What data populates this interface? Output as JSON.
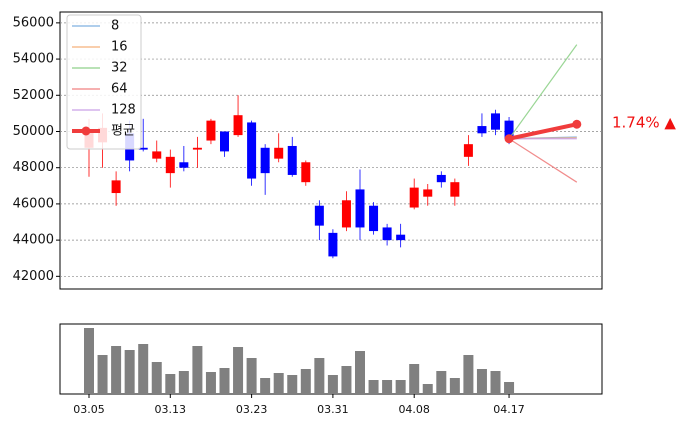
{
  "chart_data": [
    {
      "type": "candlestick",
      "ylim": [
        41300,
        56600
      ],
      "yticks": [
        42000,
        44000,
        46000,
        48000,
        50000,
        52000,
        54000,
        56000
      ],
      "grid": true,
      "up_color": "#ff0000",
      "down_color": "#0000ff",
      "open": [
        49100,
        49400,
        46600,
        49900,
        49100,
        48500,
        47700,
        48300,
        49000,
        49500,
        50000,
        49800,
        50500,
        49100,
        48500,
        49200,
        47200,
        45900,
        44400,
        44700,
        46800,
        45900,
        44700,
        44300,
        45800,
        46400,
        47600,
        46400,
        48600,
        50300,
        51000,
        50600,
        null,
        null,
        null,
        null,
        null
      ],
      "high": [
        50700,
        51000,
        47800,
        50600,
        50700,
        49500,
        49000,
        49200,
        49700,
        50700,
        50000,
        52000,
        50600,
        49300,
        49900,
        49700,
        48400,
        46200,
        44600,
        46700,
        47900,
        46100,
        44900,
        44900,
        47400,
        47100,
        47800,
        47400,
        49800,
        51000,
        51200,
        50800,
        null,
        null,
        null,
        null,
        null
      ],
      "low": [
        47500,
        48000,
        45900,
        47800,
        48900,
        48300,
        46900,
        47800,
        48000,
        49300,
        48600,
        49700,
        47000,
        46500,
        48300,
        47500,
        47000,
        44000,
        43000,
        44500,
        44000,
        44300,
        43700,
        43600,
        45700,
        45900,
        46900,
        45900,
        48100,
        49700,
        49800,
        49300,
        null,
        null,
        null,
        null,
        null
      ],
      "close": [
        50000,
        50200,
        47300,
        48400,
        49000,
        48900,
        48600,
        48000,
        49100,
        50600,
        48900,
        50900,
        47400,
        47700,
        49100,
        47600,
        48300,
        44800,
        43100,
        46200,
        44700,
        44500,
        44000,
        44000,
        46900,
        46800,
        47200,
        47200,
        49300,
        49900,
        50100,
        49600,
        null,
        null,
        null,
        null,
        null
      ],
      "series": [
        {
          "name": "8",
          "color": "#7fb0e0",
          "values": [
            null,
            null,
            null,
            null,
            null,
            null,
            null,
            null,
            null,
            null,
            null,
            null,
            null,
            null,
            null,
            null,
            null,
            null,
            null,
            null,
            null,
            null,
            null,
            null,
            null,
            null,
            null,
            null,
            null,
            null,
            null,
            49600,
            null,
            null,
            null,
            null,
            49700
          ]
        },
        {
          "name": "16",
          "color": "#f5b07a",
          "values": [
            null,
            null,
            null,
            null,
            null,
            null,
            null,
            null,
            null,
            null,
            null,
            null,
            null,
            null,
            null,
            null,
            null,
            null,
            null,
            null,
            null,
            null,
            null,
            null,
            null,
            null,
            null,
            null,
            null,
            null,
            null,
            49600,
            null,
            null,
            null,
            null,
            49650
          ]
        },
        {
          "name": "32",
          "color": "#8fd18a",
          "values": [
            null,
            null,
            null,
            null,
            null,
            null,
            null,
            null,
            null,
            null,
            null,
            null,
            null,
            null,
            null,
            null,
            null,
            null,
            null,
            null,
            null,
            null,
            null,
            null,
            null,
            null,
            null,
            null,
            null,
            null,
            null,
            49600,
            null,
            null,
            null,
            null,
            54800
          ]
        },
        {
          "name": "64",
          "color": "#f08080",
          "values": [
            null,
            null,
            null,
            null,
            null,
            null,
            null,
            null,
            null,
            null,
            null,
            null,
            null,
            null,
            null,
            null,
            null,
            null,
            null,
            null,
            null,
            null,
            null,
            null,
            null,
            null,
            null,
            null,
            null,
            null,
            null,
            49600,
            null,
            null,
            null,
            null,
            47200
          ]
        },
        {
          "name": "128",
          "color": "#c9a0e8",
          "values": [
            null,
            null,
            null,
            null,
            null,
            null,
            null,
            null,
            null,
            null,
            null,
            null,
            null,
            null,
            null,
            null,
            null,
            null,
            null,
            null,
            null,
            null,
            null,
            null,
            null,
            null,
            null,
            null,
            null,
            null,
            null,
            49600,
            null,
            null,
            null,
            null,
            49600
          ]
        },
        {
          "name": "평균",
          "color": "#f03c3c",
          "values": [
            null,
            null,
            null,
            null,
            null,
            null,
            null,
            null,
            null,
            null,
            null,
            null,
            null,
            null,
            null,
            null,
            null,
            null,
            null,
            null,
            null,
            null,
            null,
            null,
            null,
            null,
            null,
            null,
            null,
            null,
            null,
            49600,
            null,
            null,
            null,
            null,
            50400
          ]
        }
      ],
      "annotation": "1.74% ▲"
    },
    {
      "type": "bar",
      "categories": [
        "03.05",
        null,
        null,
        null,
        null,
        null,
        "03.13",
        null,
        null,
        null,
        null,
        null,
        "03.23",
        null,
        null,
        null,
        null,
        null,
        "03.31",
        null,
        null,
        null,
        null,
        null,
        "04.08",
        null,
        null,
        null,
        null,
        null,
        null,
        "04.17",
        null,
        null,
        null,
        null,
        null
      ],
      "values": [
        66,
        39,
        48,
        44,
        50,
        32,
        20,
        23,
        48,
        22,
        26,
        47,
        36,
        16,
        21,
        19,
        25,
        36,
        19,
        28,
        43,
        14,
        14,
        14,
        30,
        10,
        23,
        16,
        39,
        25,
        23,
        12,
        null,
        null,
        null,
        null,
        null
      ],
      "ylim": [
        0,
        70
      ],
      "color": "#808080"
    }
  ]
}
